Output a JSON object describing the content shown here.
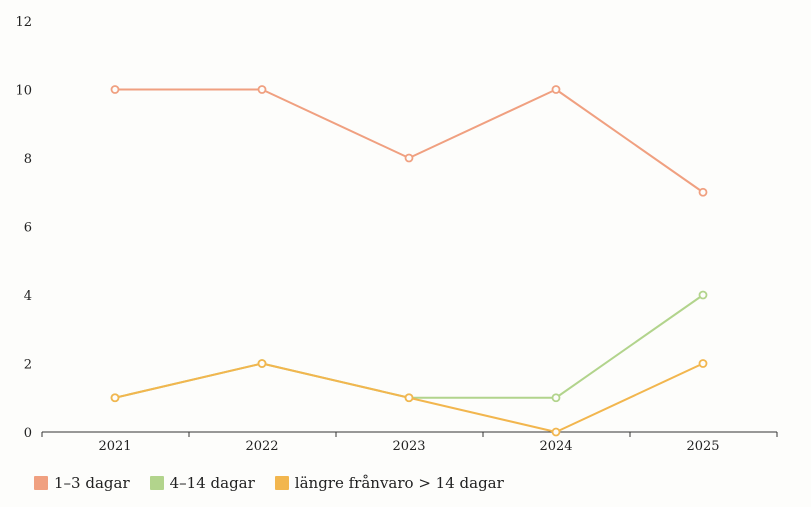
{
  "chart_data": {
    "type": "line",
    "categories": [
      "2021",
      "2022",
      "2023",
      "2024",
      "2025"
    ],
    "y_ticks": [
      0,
      2,
      4,
      6,
      8,
      10,
      12
    ],
    "ylim": [
      0,
      12
    ],
    "grid": false,
    "legend_position": "bottom-left",
    "series": [
      {
        "name": "1–3 dagar",
        "color": "#f0a080",
        "values": [
          10,
          10,
          8,
          10,
          7
        ]
      },
      {
        "name": "4–14 dagar",
        "color": "#b2d48c",
        "values": [
          1,
          2,
          1,
          1,
          4
        ]
      },
      {
        "name": "längre frånvaro > 14 dagar",
        "color": "#f2b64e",
        "values": [
          1,
          2,
          1,
          0,
          2
        ]
      }
    ]
  }
}
